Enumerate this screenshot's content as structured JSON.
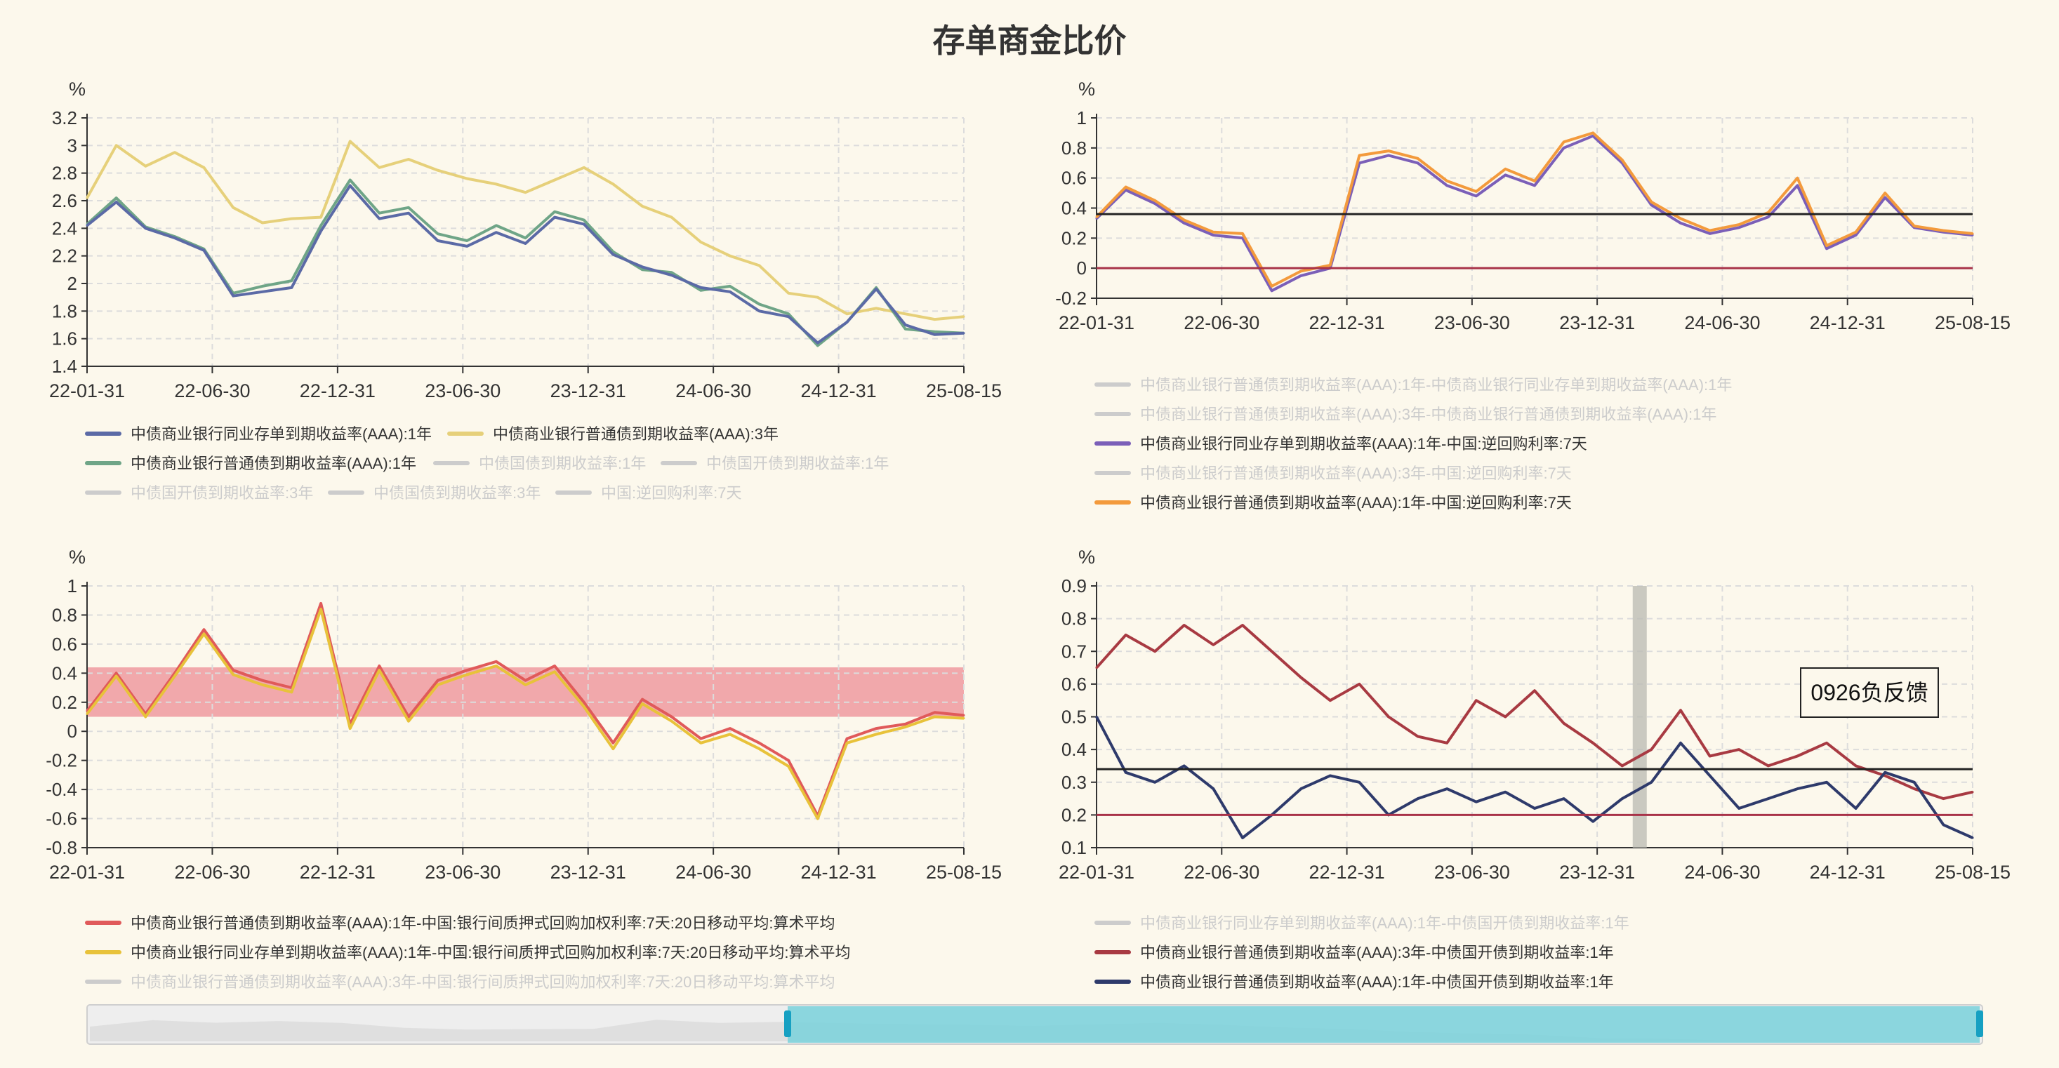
{
  "page_title": "存单商金比价",
  "colors": {
    "background": "#fcf8ec",
    "axis": "#333333",
    "grid": "#dcdcdc",
    "legend_inactive": "#cccccc"
  },
  "chart_data": [
    {
      "type": "line",
      "id": "top-left",
      "unit": "%",
      "ylim": [
        1.4,
        3.2
      ],
      "yticks": [
        1.4,
        1.6,
        1.8,
        2,
        2.2,
        2.4,
        2.6,
        2.8,
        3,
        3.2
      ],
      "xticks": [
        "22-01-31",
        "22-06-30",
        "22-12-31",
        "23-06-30",
        "23-12-31",
        "24-06-30",
        "24-12-31",
        "25-08-15"
      ],
      "grid": true,
      "legend_placement": "bottom",
      "legend": [
        {
          "name": "中债商业银行同业存单到期收益率(AAA):1年",
          "color": "#5b6aa6",
          "active": true
        },
        {
          "name": "中债商业银行普通债到期收益率(AAA):3年",
          "color": "#e6d07a",
          "active": true
        },
        {
          "name": "中债商业银行普通债到期收益率(AAA):1年",
          "color": "#6fa587",
          "active": true
        },
        {
          "name": "中债国债到期收益率:1年",
          "color": "#cccccc",
          "active": false
        },
        {
          "name": "中债国开债到期收益率:1年",
          "color": "#cccccc",
          "active": false
        },
        {
          "name": "中债国开债到期收益率:3年",
          "color": "#cccccc",
          "active": false
        },
        {
          "name": "中债国债到期收益率:3年",
          "color": "#cccccc",
          "active": false
        },
        {
          "name": "中国:逆回购利率:7天",
          "color": "#cccccc",
          "active": false
        }
      ],
      "series": [
        {
          "name": "中债商业银行普通债到期收益率(AAA):3年",
          "color": "#e6d07a",
          "values": [
            2.62,
            3.0,
            2.85,
            2.95,
            2.84,
            2.55,
            2.44,
            2.47,
            2.48,
            3.03,
            2.84,
            2.9,
            2.82,
            2.76,
            2.72,
            2.66,
            2.75,
            2.84,
            2.72,
            2.56,
            2.48,
            2.3,
            2.2,
            2.13,
            1.93,
            1.9,
            1.78,
            1.82,
            1.78,
            1.74,
            1.76
          ]
        },
        {
          "name": "中债商业银行普通债到期收益率(AAA):1年",
          "color": "#6fa587",
          "values": [
            2.43,
            2.62,
            2.41,
            2.34,
            2.25,
            1.93,
            1.98,
            2.02,
            2.42,
            2.75,
            2.51,
            2.55,
            2.36,
            2.31,
            2.42,
            2.33,
            2.52,
            2.46,
            2.23,
            2.1,
            2.08,
            1.95,
            1.98,
            1.85,
            1.78,
            1.55,
            1.72,
            1.97,
            1.67,
            1.65,
            1.64
          ]
        },
        {
          "name": "中债商业银行同业存单到期收益率(AAA):1年",
          "color": "#5b6aa6",
          "values": [
            2.42,
            2.59,
            2.4,
            2.33,
            2.24,
            1.91,
            1.94,
            1.97,
            2.38,
            2.71,
            2.47,
            2.51,
            2.31,
            2.27,
            2.37,
            2.29,
            2.48,
            2.43,
            2.21,
            2.12,
            2.06,
            1.97,
            1.94,
            1.8,
            1.76,
            1.57,
            1.72,
            1.96,
            1.7,
            1.63,
            1.64
          ]
        }
      ]
    },
    {
      "type": "line",
      "id": "top-right",
      "unit": "%",
      "ylim": [
        -0.2,
        1
      ],
      "yticks": [
        -0.2,
        0,
        0.2,
        0.4,
        0.6,
        0.8,
        1
      ],
      "xticks": [
        "22-01-31",
        "22-06-30",
        "22-12-31",
        "23-06-30",
        "23-12-31",
        "24-06-30",
        "24-12-31",
        "25-08-15"
      ],
      "grid": true,
      "legend_placement": "bottom",
      "reference_lines": [
        {
          "value": 0.36,
          "color": "#222222"
        },
        {
          "value": 0,
          "color": "#a83248"
        }
      ],
      "legend": [
        {
          "name": "中债商业银行普通债到期收益率(AAA):1年-中债商业银行同业存单到期收益率(AAA):1年",
          "color": "#cccccc",
          "active": false
        },
        {
          "name": "中债商业银行普通债到期收益率(AAA):3年-中债商业银行普通债到期收益率(AAA):1年",
          "color": "#cccccc",
          "active": false
        },
        {
          "name": "中债商业银行同业存单到期收益率(AAA):1年-中国:逆回购利率:7天",
          "color": "#7b5fb8",
          "active": true
        },
        {
          "name": "中债商业银行普通债到期收益率(AAA):3年-中国:逆回购利率:7天",
          "color": "#cccccc",
          "active": false
        },
        {
          "name": "中债商业银行普通债到期收益率(AAA):1年-中国:逆回购利率:7天",
          "color": "#f39a3c",
          "active": true
        }
      ],
      "series": [
        {
          "name": "中债商业银行同业存单到期收益率(AAA):1年-中国:逆回购利率:7天",
          "color": "#7b5fb8",
          "values": [
            0.33,
            0.52,
            0.43,
            0.3,
            0.22,
            0.2,
            -0.15,
            -0.05,
            0,
            0.7,
            0.75,
            0.7,
            0.55,
            0.48,
            0.62,
            0.55,
            0.8,
            0.88,
            0.7,
            0.42,
            0.3,
            0.23,
            0.27,
            0.34,
            0.55,
            0.13,
            0.22,
            0.47,
            0.27,
            0.24,
            0.22
          ]
        },
        {
          "name": "中债商业银行普通债到期收益率(AAA):1年-中国:逆回购利率:7天",
          "color": "#f39a3c",
          "values": [
            0.34,
            0.54,
            0.45,
            0.32,
            0.24,
            0.23,
            -0.12,
            -0.02,
            0.02,
            0.75,
            0.78,
            0.73,
            0.58,
            0.51,
            0.66,
            0.58,
            0.84,
            0.9,
            0.72,
            0.44,
            0.33,
            0.25,
            0.29,
            0.37,
            0.6,
            0.15,
            0.24,
            0.5,
            0.28,
            0.25,
            0.23
          ]
        }
      ]
    },
    {
      "type": "line",
      "id": "bottom-left",
      "unit": "%",
      "ylim": [
        -0.8,
        1
      ],
      "yticks": [
        -0.8,
        -0.6,
        -0.4,
        -0.2,
        0,
        0.2,
        0.4,
        0.6,
        0.8,
        1
      ],
      "xticks": [
        "22-01-31",
        "22-06-30",
        "22-12-31",
        "23-06-30",
        "23-12-31",
        "24-06-30",
        "24-12-31",
        "25-08-15"
      ],
      "grid": true,
      "legend_placement": "bottom",
      "band": {
        "from": 0.1,
        "to": 0.44,
        "color": "#ee9aa0"
      },
      "legend": [
        {
          "name": "中债商业银行普通债到期收益率(AAA):1年-中国:银行间质押式回购加权利率:7天:20日移动平均:算术平均",
          "color": "#e05a5a",
          "active": true
        },
        {
          "name": "中债商业银行同业存单到期收益率(AAA):1年-中国:银行间质押式回购加权利率:7天:20日移动平均:算术平均",
          "color": "#e8c23a",
          "active": true
        },
        {
          "name": "中债商业银行普通债到期收益率(AAA):3年-中国:银行间质押式回购加权利率:7天:20日移动平均:算术平均",
          "color": "#cccccc",
          "active": false
        }
      ],
      "series": [
        {
          "name": "中债商业银行普通债到期收益率(AAA):1年-中国:银行间质押式回购加权利率:7天:20日移动平均:算术平均",
          "color": "#e05a5a",
          "values": [
            0.14,
            0.4,
            0.12,
            0.4,
            0.7,
            0.42,
            0.35,
            0.3,
            0.88,
            0.05,
            0.45,
            0.1,
            0.35,
            0.42,
            0.48,
            0.35,
            0.45,
            0.2,
            -0.08,
            0.22,
            0.1,
            -0.05,
            0.02,
            -0.08,
            -0.2,
            -0.58,
            -0.05,
            0.02,
            0.05,
            0.13,
            0.11
          ]
        },
        {
          "name": "中债商业银行同业存单到期收益率(AAA):1年-中国:银行间质押式回购加权利率:7天:20日移动平均:算术平均",
          "color": "#e8c23a",
          "values": [
            0.12,
            0.38,
            0.1,
            0.38,
            0.67,
            0.39,
            0.32,
            0.27,
            0.84,
            0.02,
            0.42,
            0.07,
            0.32,
            0.39,
            0.45,
            0.32,
            0.41,
            0.17,
            -0.12,
            0.19,
            0.07,
            -0.08,
            -0.02,
            -0.12,
            -0.24,
            -0.6,
            -0.08,
            -0.02,
            0.03,
            0.1,
            0.09
          ]
        }
      ]
    },
    {
      "type": "line",
      "id": "bottom-right",
      "unit": "%",
      "ylim": [
        0.1,
        0.9
      ],
      "yticks": [
        0.1,
        0.2,
        0.3,
        0.4,
        0.5,
        0.6,
        0.7,
        0.8,
        0.9
      ],
      "xticks": [
        "22-01-31",
        "22-06-30",
        "22-12-31",
        "23-06-30",
        "23-12-31",
        "24-06-30",
        "24-12-31",
        "25-08-15"
      ],
      "grid": true,
      "legend_placement": "bottom",
      "reference_lines": [
        {
          "value": 0.34,
          "color": "#222222"
        },
        {
          "value": 0.2,
          "color": "#a83248"
        }
      ],
      "annotation": {
        "text": "0926负反馈"
      },
      "legend": [
        {
          "name": "中债商业银行同业存单到期收益率(AAA):1年-中债国开债到期收益率:1年",
          "color": "#cccccc",
          "active": false
        },
        {
          "name": "中债商业银行普通债到期收益率(AAA):3年-中债国开债到期收益率:1年",
          "color": "#a83a42",
          "active": true
        },
        {
          "name": "中债商业银行普通债到期收益率(AAA):1年-中债国开债到期收益率:1年",
          "color": "#2e3a6b",
          "active": true
        }
      ],
      "series": [
        {
          "name": "中债商业银行普通债到期收益率(AAA):3年-中债国开债到期收益率:1年",
          "color": "#a83a42",
          "values": [
            0.65,
            0.75,
            0.7,
            0.78,
            0.72,
            0.78,
            0.7,
            0.62,
            0.55,
            0.6,
            0.5,
            0.44,
            0.42,
            0.55,
            0.5,
            0.58,
            0.48,
            0.42,
            0.35,
            0.4,
            0.52,
            0.38,
            0.4,
            0.35,
            0.38,
            0.42,
            0.35,
            0.32,
            0.28,
            0.25,
            0.27
          ]
        },
        {
          "name": "中债商业银行普通债到期收益率(AAA):1年-中债国开债到期收益率:1年",
          "color": "#2e3a6b",
          "values": [
            0.5,
            0.33,
            0.3,
            0.35,
            0.28,
            0.13,
            0.2,
            0.28,
            0.32,
            0.3,
            0.2,
            0.25,
            0.28,
            0.24,
            0.27,
            0.22,
            0.25,
            0.18,
            0.25,
            0.3,
            0.42,
            0.32,
            0.22,
            0.25,
            0.28,
            0.3,
            0.22,
            0.33,
            0.3,
            0.17,
            0.13
          ]
        }
      ]
    }
  ]
}
